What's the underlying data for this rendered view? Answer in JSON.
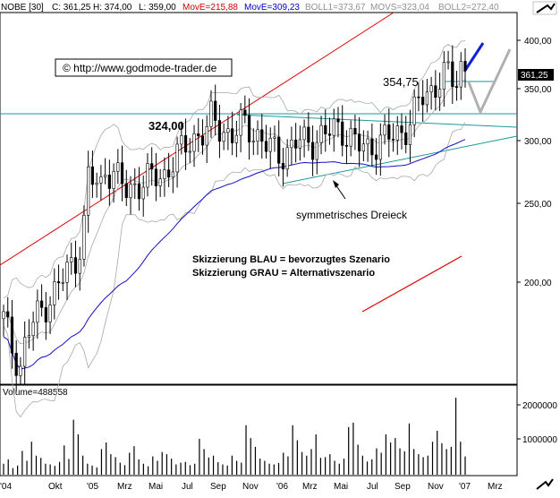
{
  "chart_data": [
    {
      "type": "candlestick",
      "title": "",
      "header": {
        "symbol": "NOBE [30]",
        "close": "C: 361,25",
        "high": "H: 374,00",
        "low": "L: 359,00",
        "ma_red": "MovE=215,88",
        "ma_blue": "MovE=309,23",
        "boll1": "BOLL1=373,67",
        "movs": "MOVS=323,04",
        "boll2": "BOLL2=272,40"
      },
      "x_tick_labels": [
        "'04",
        "Okt",
        "'05",
        "Mrz",
        "Mai",
        "Jul",
        "Sep",
        "Nov",
        "'06",
        "Mrz",
        "Mai",
        "Jul",
        "Sep",
        "Nov",
        "'07",
        "Mrz"
      ],
      "y_tick_labels": [
        "400,00",
        "350,00",
        "300,00",
        "250,00",
        "200,00"
      ],
      "y_scale": "log",
      "ylim": [
        145,
        420
      ],
      "price_marker": "361,25",
      "annotations": {
        "copyright": "© http://www.godmode-trader.de",
        "level_324": "324,00",
        "level_354": "354,75",
        "triangle": "symmetrisches Dreieck",
        "box_line1": "Skizzierung BLAU = bevorzugtes Szenario",
        "box_line2": "Skizzierung GRAU = Alternativszenario"
      },
      "price_series_points": [
        [
          0,
          175
        ],
        [
          2,
          160
        ],
        [
          4,
          152
        ],
        [
          5,
          165
        ],
        [
          7,
          175
        ],
        [
          9,
          180
        ],
        [
          10,
          185
        ],
        [
          12,
          190
        ],
        [
          14,
          200
        ],
        [
          16,
          205
        ],
        [
          18,
          225
        ],
        [
          19,
          262
        ],
        [
          20,
          260
        ],
        [
          22,
          255
        ],
        [
          23,
          270
        ],
        [
          25,
          265
        ],
        [
          27,
          255
        ],
        [
          28,
          250
        ],
        [
          30,
          258
        ],
        [
          32,
          260
        ],
        [
          34,
          262
        ],
        [
          36,
          262
        ],
        [
          38,
          275
        ],
        [
          40,
          282
        ],
        [
          42,
          290
        ],
        [
          44,
          297
        ],
        [
          46,
          300
        ],
        [
          47,
          312
        ],
        [
          48,
          305
        ],
        [
          50,
          298
        ],
        [
          52,
          296
        ],
        [
          54,
          306
        ],
        [
          56,
          300
        ],
        [
          58,
          292
        ],
        [
          60,
          285
        ],
        [
          62,
          280
        ],
        [
          64,
          283
        ],
        [
          66,
          290
        ],
        [
          68,
          290
        ],
        [
          70,
          292
        ],
        [
          72,
          295
        ],
        [
          74,
          300
        ],
        [
          76,
          303
        ],
        [
          78,
          293
        ],
        [
          80,
          287
        ],
        [
          82,
          285
        ],
        [
          84,
          290
        ],
        [
          86,
          292
        ],
        [
          88,
          296
        ],
        [
          90,
          300
        ],
        [
          92,
          308
        ],
        [
          94,
          330
        ],
        [
          96,
          335
        ],
        [
          98,
          345
        ],
        [
          100,
          352
        ],
        [
          102,
          345
        ],
        [
          103,
          360
        ],
        [
          104,
          361
        ]
      ],
      "indicators": {
        "ma_red_value": 215.88,
        "ma_blue_value": 309.23,
        "boll_upper": 373.67,
        "boll_mid": 323.04,
        "boll_lower": 272.4
      }
    },
    {
      "type": "bar",
      "title": "",
      "volume_label": "Volume=488558",
      "y_tick_labels": [
        "2000000",
        "1000000"
      ],
      "ylim": [
        0,
        2200000
      ],
      "values": [
        300000,
        420000,
        180000,
        250000,
        650000,
        380000,
        900000,
        520000,
        460000,
        300000,
        280000,
        240000,
        350000,
        800000,
        430000,
        1500000,
        1100000,
        520000,
        300000,
        250000,
        200000,
        700000,
        880000,
        560000,
        480000,
        330000,
        260000,
        600000,
        780000,
        420000,
        300000,
        230000,
        500000,
        380000,
        620000,
        560000,
        440000,
        280000,
        330000,
        350000,
        260000,
        300000,
        980000,
        700000,
        470000,
        520000,
        340000,
        280000,
        250000,
        520000,
        380000,
        330000,
        1350000,
        1000000,
        760000,
        440000,
        380000,
        300000,
        280000,
        320000,
        600000,
        500000,
        1350000,
        940000,
        620000,
        520000,
        700000,
        1100000,
        460000,
        480000,
        560000,
        380000,
        300000,
        440000,
        1300000,
        1420000,
        820000,
        520000,
        360000,
        420000,
        720000,
        600000,
        1100000,
        880000,
        1000000,
        720000,
        640000,
        1400000,
        700000,
        560000,
        480000,
        520000,
        900000,
        1200000,
        860000,
        700000,
        760000,
        2100000,
        900000,
        500000
      ]
    }
  ],
  "colors": {
    "background": "#ffffff",
    "red_line": "#e00000",
    "blue_line": "#1010c0",
    "cyan_line": "#1a9a9a",
    "bollinger": "#a8a8a8",
    "candle": "#000000",
    "header_red": "#d00000",
    "header_blue": "#0000cc",
    "header_gray": "#909090",
    "scenario_blue": "#1020e0",
    "scenario_gray": "#b0b0b0"
  },
  "icons": {
    "logo": "arrow-logo-icon"
  }
}
